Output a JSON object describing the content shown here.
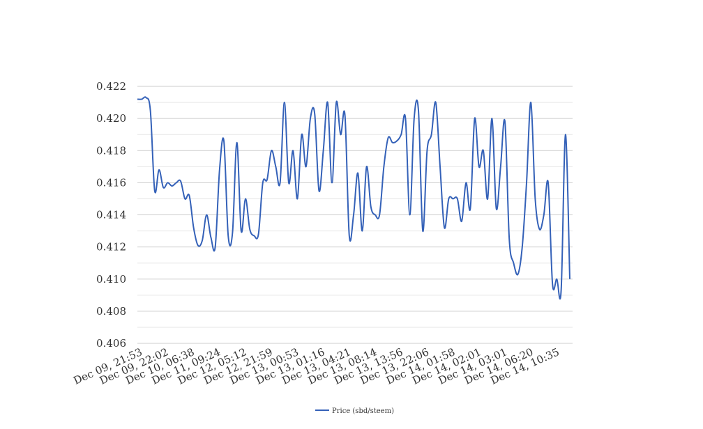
{
  "chart_data": {
    "type": "line",
    "title": "",
    "xlabel": "",
    "ylabel": "",
    "ylim": [
      0.406,
      0.422
    ],
    "yticks": [
      0.406,
      0.408,
      0.41,
      0.412,
      0.414,
      0.416,
      0.418,
      0.42,
      0.422
    ],
    "ytick_labels": [
      "0.406",
      "0.408",
      "0.410",
      "0.412",
      "0.414",
      "0.416",
      "0.418",
      "0.420",
      "0.422"
    ],
    "xtick_labels": [
      "Dec 09, 21:53",
      "Dec 09, 22:02",
      "Dec 10, 06:38",
      "Dec 11, 09:24",
      "Dec 12, 05:12",
      "Dec 12, 21:59",
      "Dec 13, 00:53",
      "Dec 13, 01:16",
      "Dec 13, 04:21",
      "Dec 13, 08:14",
      "Dec 13, 13:56",
      "Dec 13, 22:06",
      "Dec 14, 01:58",
      "Dec 14, 02:01",
      "Dec 14, 03:01",
      "Dec 14, 06:20",
      "Dec 14, 10:35"
    ],
    "grid": true,
    "legend_position": "bottom",
    "series": [
      {
        "name": "Price (sbd/steem)",
        "color": "#3461b8",
        "values": [
          0.4212,
          0.4212,
          0.4213,
          0.4205,
          0.4155,
          0.4168,
          0.4157,
          0.416,
          0.4158,
          0.416,
          0.4161,
          0.415,
          0.4152,
          0.4132,
          0.4121,
          0.4124,
          0.414,
          0.4126,
          0.412,
          0.4168,
          0.4186,
          0.4127,
          0.4129,
          0.4185,
          0.413,
          0.415,
          0.4131,
          0.4127,
          0.4128,
          0.416,
          0.4162,
          0.418,
          0.417,
          0.416,
          0.421,
          0.416,
          0.418,
          0.415,
          0.419,
          0.417,
          0.42,
          0.4203,
          0.4155,
          0.418,
          0.421,
          0.416,
          0.421,
          0.419,
          0.4202,
          0.4127,
          0.414,
          0.4166,
          0.413,
          0.417,
          0.4145,
          0.414,
          0.414,
          0.417,
          0.4188,
          0.4185,
          0.4186,
          0.419,
          0.42,
          0.414,
          0.42,
          0.4205,
          0.413,
          0.418,
          0.419,
          0.421,
          0.417,
          0.4132,
          0.415,
          0.415,
          0.415,
          0.4136,
          0.416,
          0.4144,
          0.42,
          0.417,
          0.418,
          0.415,
          0.42,
          0.4144,
          0.417,
          0.4198,
          0.4125,
          0.411,
          0.4103,
          0.412,
          0.416,
          0.421,
          0.415,
          0.4131,
          0.414,
          0.416,
          0.4097,
          0.41,
          0.4093,
          0.419,
          0.41
        ]
      }
    ]
  }
}
